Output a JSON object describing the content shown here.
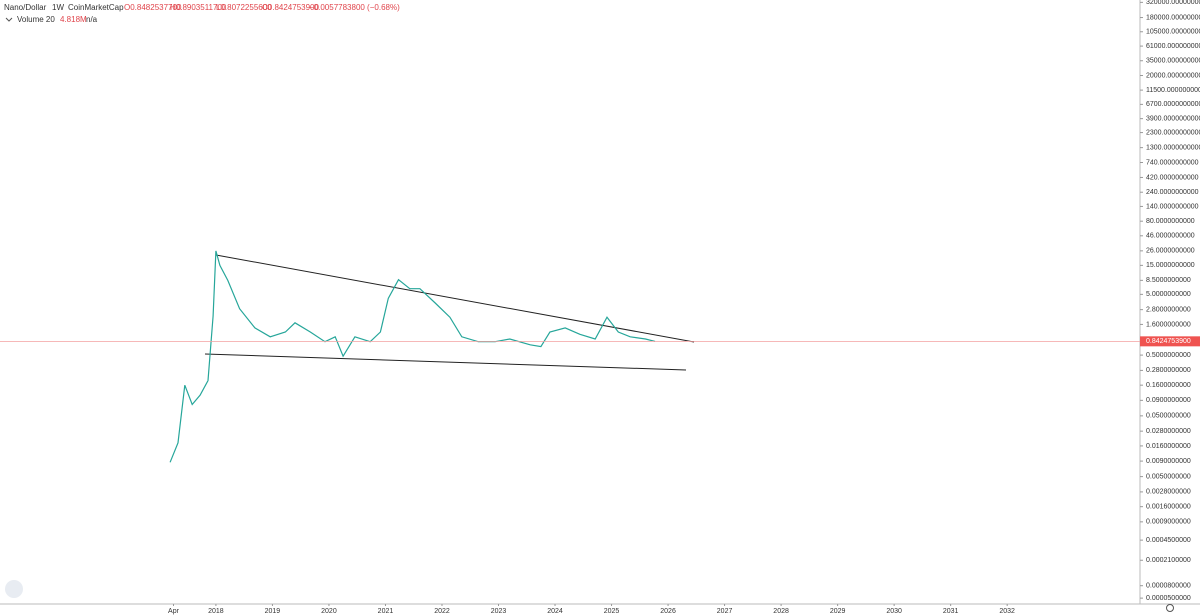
{
  "chart_data": {
    "type": "line",
    "title": "Nano/Dollar",
    "interval": "1W",
    "source": "CoinMarketCap",
    "ohlc": [
      "O0.8482537700",
      "H0.8903511700",
      "L0.8072255600",
      "C0.8424753900"
    ],
    "change": "−0.0057783800 (−0.68%)",
    "volume_label": "Volume 20",
    "volume_value": "4.818M",
    "volume_ma": "n/a",
    "log_scale": true,
    "grid": false,
    "color": "#26a69a",
    "x": [
      2017.19,
      2017.33,
      2017.45,
      2017.58,
      2017.72,
      2017.86,
      2017.95,
      2018.0,
      2018.07,
      2018.21,
      2018.42,
      2018.69,
      2018.96,
      2019.23,
      2019.4,
      2019.67,
      2019.93,
      2020.11,
      2020.25,
      2020.46,
      2020.73,
      2020.91,
      2021.05,
      2021.23,
      2021.43,
      2021.61,
      2021.88,
      2022.14,
      2022.35,
      2022.64,
      2022.94,
      2023.2,
      2023.56,
      2023.75,
      2023.91,
      2024.18,
      2024.44,
      2024.71,
      2024.92,
      2025.12,
      2025.33,
      2025.6,
      2025.77
    ],
    "values": [
      0.0086,
      0.018,
      0.16,
      0.077,
      0.11,
      0.19,
      2.2,
      26,
      15,
      8.5,
      2.9,
      1.4,
      1.0,
      1.2,
      1.7,
      1.2,
      0.83,
      1.0,
      0.48,
      1.0,
      0.83,
      1.2,
      4.3,
      8.7,
      6.2,
      6.2,
      3.6,
      2.1,
      1.0,
      0.83,
      0.83,
      0.92,
      0.74,
      0.69,
      1.2,
      1.4,
      1.1,
      0.92,
      2.1,
      1.2,
      1.0,
      0.92,
      0.84
    ],
    "last_price": {
      "value": 0.84247539,
      "label": "0.8424753900"
    },
    "xlim": [
      2014.18,
      2034.35
    ],
    "xticks": [
      {
        "value": 2017.25,
        "label": "Apr"
      },
      2018,
      2019,
      2020,
      2021,
      2022,
      2023,
      2024,
      2025,
      2026,
      2027,
      2028,
      2029,
      2030,
      2031,
      2032
    ],
    "ylim": [
      4e-05,
      350000
    ],
    "yticks": [
      {
        "value": 320000,
        "label": "320000.0000000000"
      },
      {
        "value": 180000,
        "label": "180000.0000000000"
      },
      {
        "value": 105000,
        "label": "105000.0000000000"
      },
      {
        "value": 61000,
        "label": "61000.0000000000"
      },
      {
        "value": 35000,
        "label": "35000.0000000000"
      },
      {
        "value": 20000,
        "label": "20000.0000000000"
      },
      {
        "value": 11500,
        "label": "11500.0000000000"
      },
      {
        "value": 6700,
        "label": "6700.0000000000"
      },
      {
        "value": 3900,
        "label": "3900.0000000000"
      },
      {
        "value": 2300,
        "label": "2300.0000000000"
      },
      {
        "value": 1300,
        "label": "1300.0000000000"
      },
      {
        "value": 740,
        "label": "740.0000000000"
      },
      {
        "value": 420,
        "label": "420.0000000000"
      },
      {
        "value": 240,
        "label": "240.0000000000"
      },
      {
        "value": 140,
        "label": "140.0000000000"
      },
      {
        "value": 80,
        "label": "80.0000000000"
      },
      {
        "value": 46,
        "label": "46.0000000000"
      },
      {
        "value": 26,
        "label": "26.0000000000"
      },
      {
        "value": 15,
        "label": "15.0000000000"
      },
      {
        "value": 8.5,
        "label": "8.5000000000"
      },
      {
        "value": 5,
        "label": "5.0000000000"
      },
      {
        "value": 2.8,
        "label": "2.8000000000"
      },
      {
        "value": 1.6,
        "label": "1.6000000000"
      },
      {
        "value": 0.5,
        "label": "0.5000000000"
      },
      {
        "value": 0.28,
        "label": "0.2800000000"
      },
      {
        "value": 0.16,
        "label": "0.1600000000"
      },
      {
        "value": 0.09,
        "label": "0.0900000000"
      },
      {
        "value": 0.05,
        "label": "0.0500000000"
      },
      {
        "value": 0.028,
        "label": "0.0280000000"
      },
      {
        "value": 0.016,
        "label": "0.0160000000"
      },
      {
        "value": 0.009,
        "label": "0.0090000000"
      },
      {
        "value": 0.005,
        "label": "0.0050000000"
      },
      {
        "value": 0.0028,
        "label": "0.0028000000"
      },
      {
        "value": 0.0016,
        "label": "0.0016000000"
      },
      {
        "value": 0.0009,
        "label": "0.0009000000"
      },
      {
        "value": 0.00045,
        "label": "0.0004500000"
      },
      {
        "value": 0.00021,
        "label": "0.0002100000"
      },
      {
        "value": 8e-05,
        "label": "0.0000800000"
      },
      {
        "value": 5e-05,
        "label": "0.0000500000"
      }
    ]
  }
}
